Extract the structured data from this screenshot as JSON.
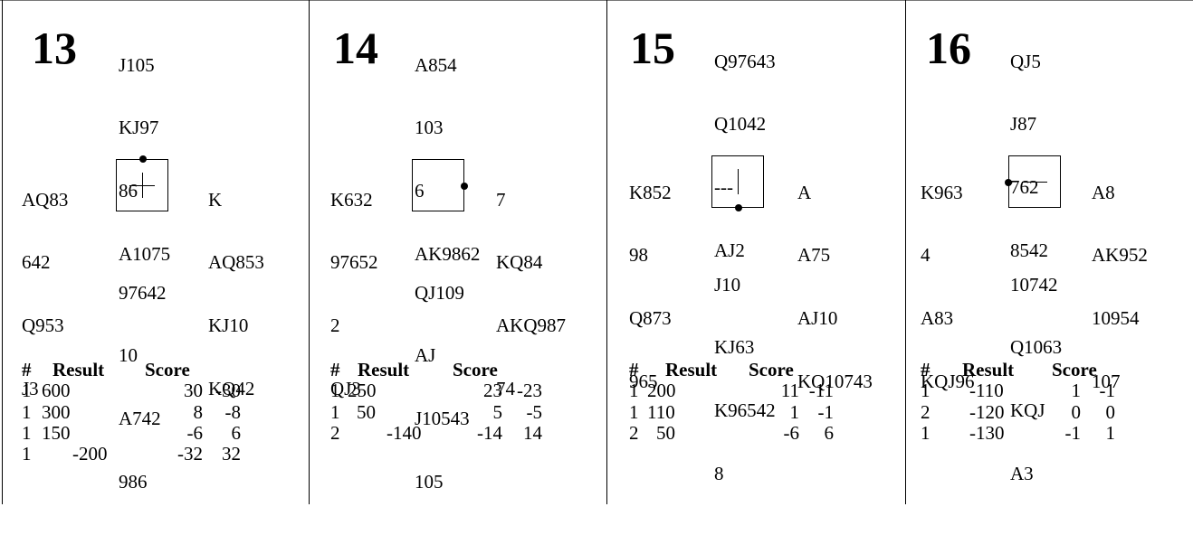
{
  "boards": [
    {
      "number": "13",
      "north": [
        "J105",
        "KJ97",
        "86",
        "A1075"
      ],
      "west": [
        "AQ83",
        "642",
        "Q953",
        "J3"
      ],
      "east": [
        "K",
        "AQ853",
        "KJ10",
        "KQ42"
      ],
      "south": [
        "97642",
        "10",
        "A742",
        "986"
      ],
      "dealer_marker": "plus-icon",
      "headers": {
        "hash": "#",
        "result": "Result",
        "score": "Score"
      },
      "rows": [
        {
          "num": "1",
          "result": "600",
          "score_a": "30",
          "score_b": "-30"
        },
        {
          "num": "1",
          "result": "300",
          "score_a": "8",
          "score_b": "-8"
        },
        {
          "num": "1",
          "result": "150",
          "score_a": "-6",
          "score_b": "6"
        },
        {
          "num": "1",
          "result": "-200",
          "score_a": "-32",
          "score_b": "32"
        }
      ]
    },
    {
      "number": "14",
      "north": [
        "A854",
        "103",
        "6",
        "AK9862"
      ],
      "west": [
        "K632",
        "97652",
        "2",
        "QJ3"
      ],
      "east": [
        "7",
        "KQ84",
        "AKQ987",
        "74"
      ],
      "south": [
        "QJ109",
        "AJ",
        "J10543",
        "105"
      ],
      "dealer_marker": "east-dot-icon",
      "headers": {
        "hash": "#",
        "result": "Result",
        "score": "Score"
      },
      "rows": [
        {
          "num": "1",
          "result": "250",
          "score_a": "23",
          "score_b": "-23"
        },
        {
          "num": "1",
          "result": "50",
          "score_a": "5",
          "score_b": "-5"
        },
        {
          "num": "2",
          "result": "-140",
          "score_a": "-14",
          "score_b": "14"
        }
      ]
    },
    {
      "number": "15",
      "north": [
        "Q97643",
        "Q1042",
        "---",
        "AJ2"
      ],
      "west": [
        "K852",
        "98",
        "Q873",
        "965"
      ],
      "east": [
        "A",
        "A75",
        "AJ10",
        "KQ10743"
      ],
      "south": [
        "J10",
        "KJ63",
        "K96542",
        "8"
      ],
      "dealer_marker": "vertical-bar-icon",
      "headers": {
        "hash": "#",
        "result": "Result",
        "score": "Score"
      },
      "rows": [
        {
          "num": "1",
          "result": "200",
          "score_a": "11",
          "score_b": "-11"
        },
        {
          "num": "1",
          "result": "110",
          "score_a": "1",
          "score_b": "-1"
        },
        {
          "num": "2",
          "result": "50",
          "score_a": "-6",
          "score_b": "6"
        }
      ]
    },
    {
      "number": "16",
      "north": [
        "QJ5",
        "J87",
        "762",
        "8542"
      ],
      "west": [
        "K963",
        "4",
        "A83",
        "KQJ96"
      ],
      "east": [
        "A8",
        "AK952",
        "10954",
        "107"
      ],
      "south": [
        "10742",
        "Q1063",
        "KQJ",
        "A3"
      ],
      "dealer_marker": "horizontal-bar-icon",
      "headers": {
        "hash": "#",
        "result": "Result",
        "score": "Score"
      },
      "rows": [
        {
          "num": "1",
          "result": "-110",
          "score_a": "1",
          "score_b": "-1"
        },
        {
          "num": "2",
          "result": "-120",
          "score_a": "0",
          "score_b": "0"
        },
        {
          "num": "1",
          "result": "-130",
          "score_a": "-1",
          "score_b": "1"
        }
      ]
    }
  ]
}
